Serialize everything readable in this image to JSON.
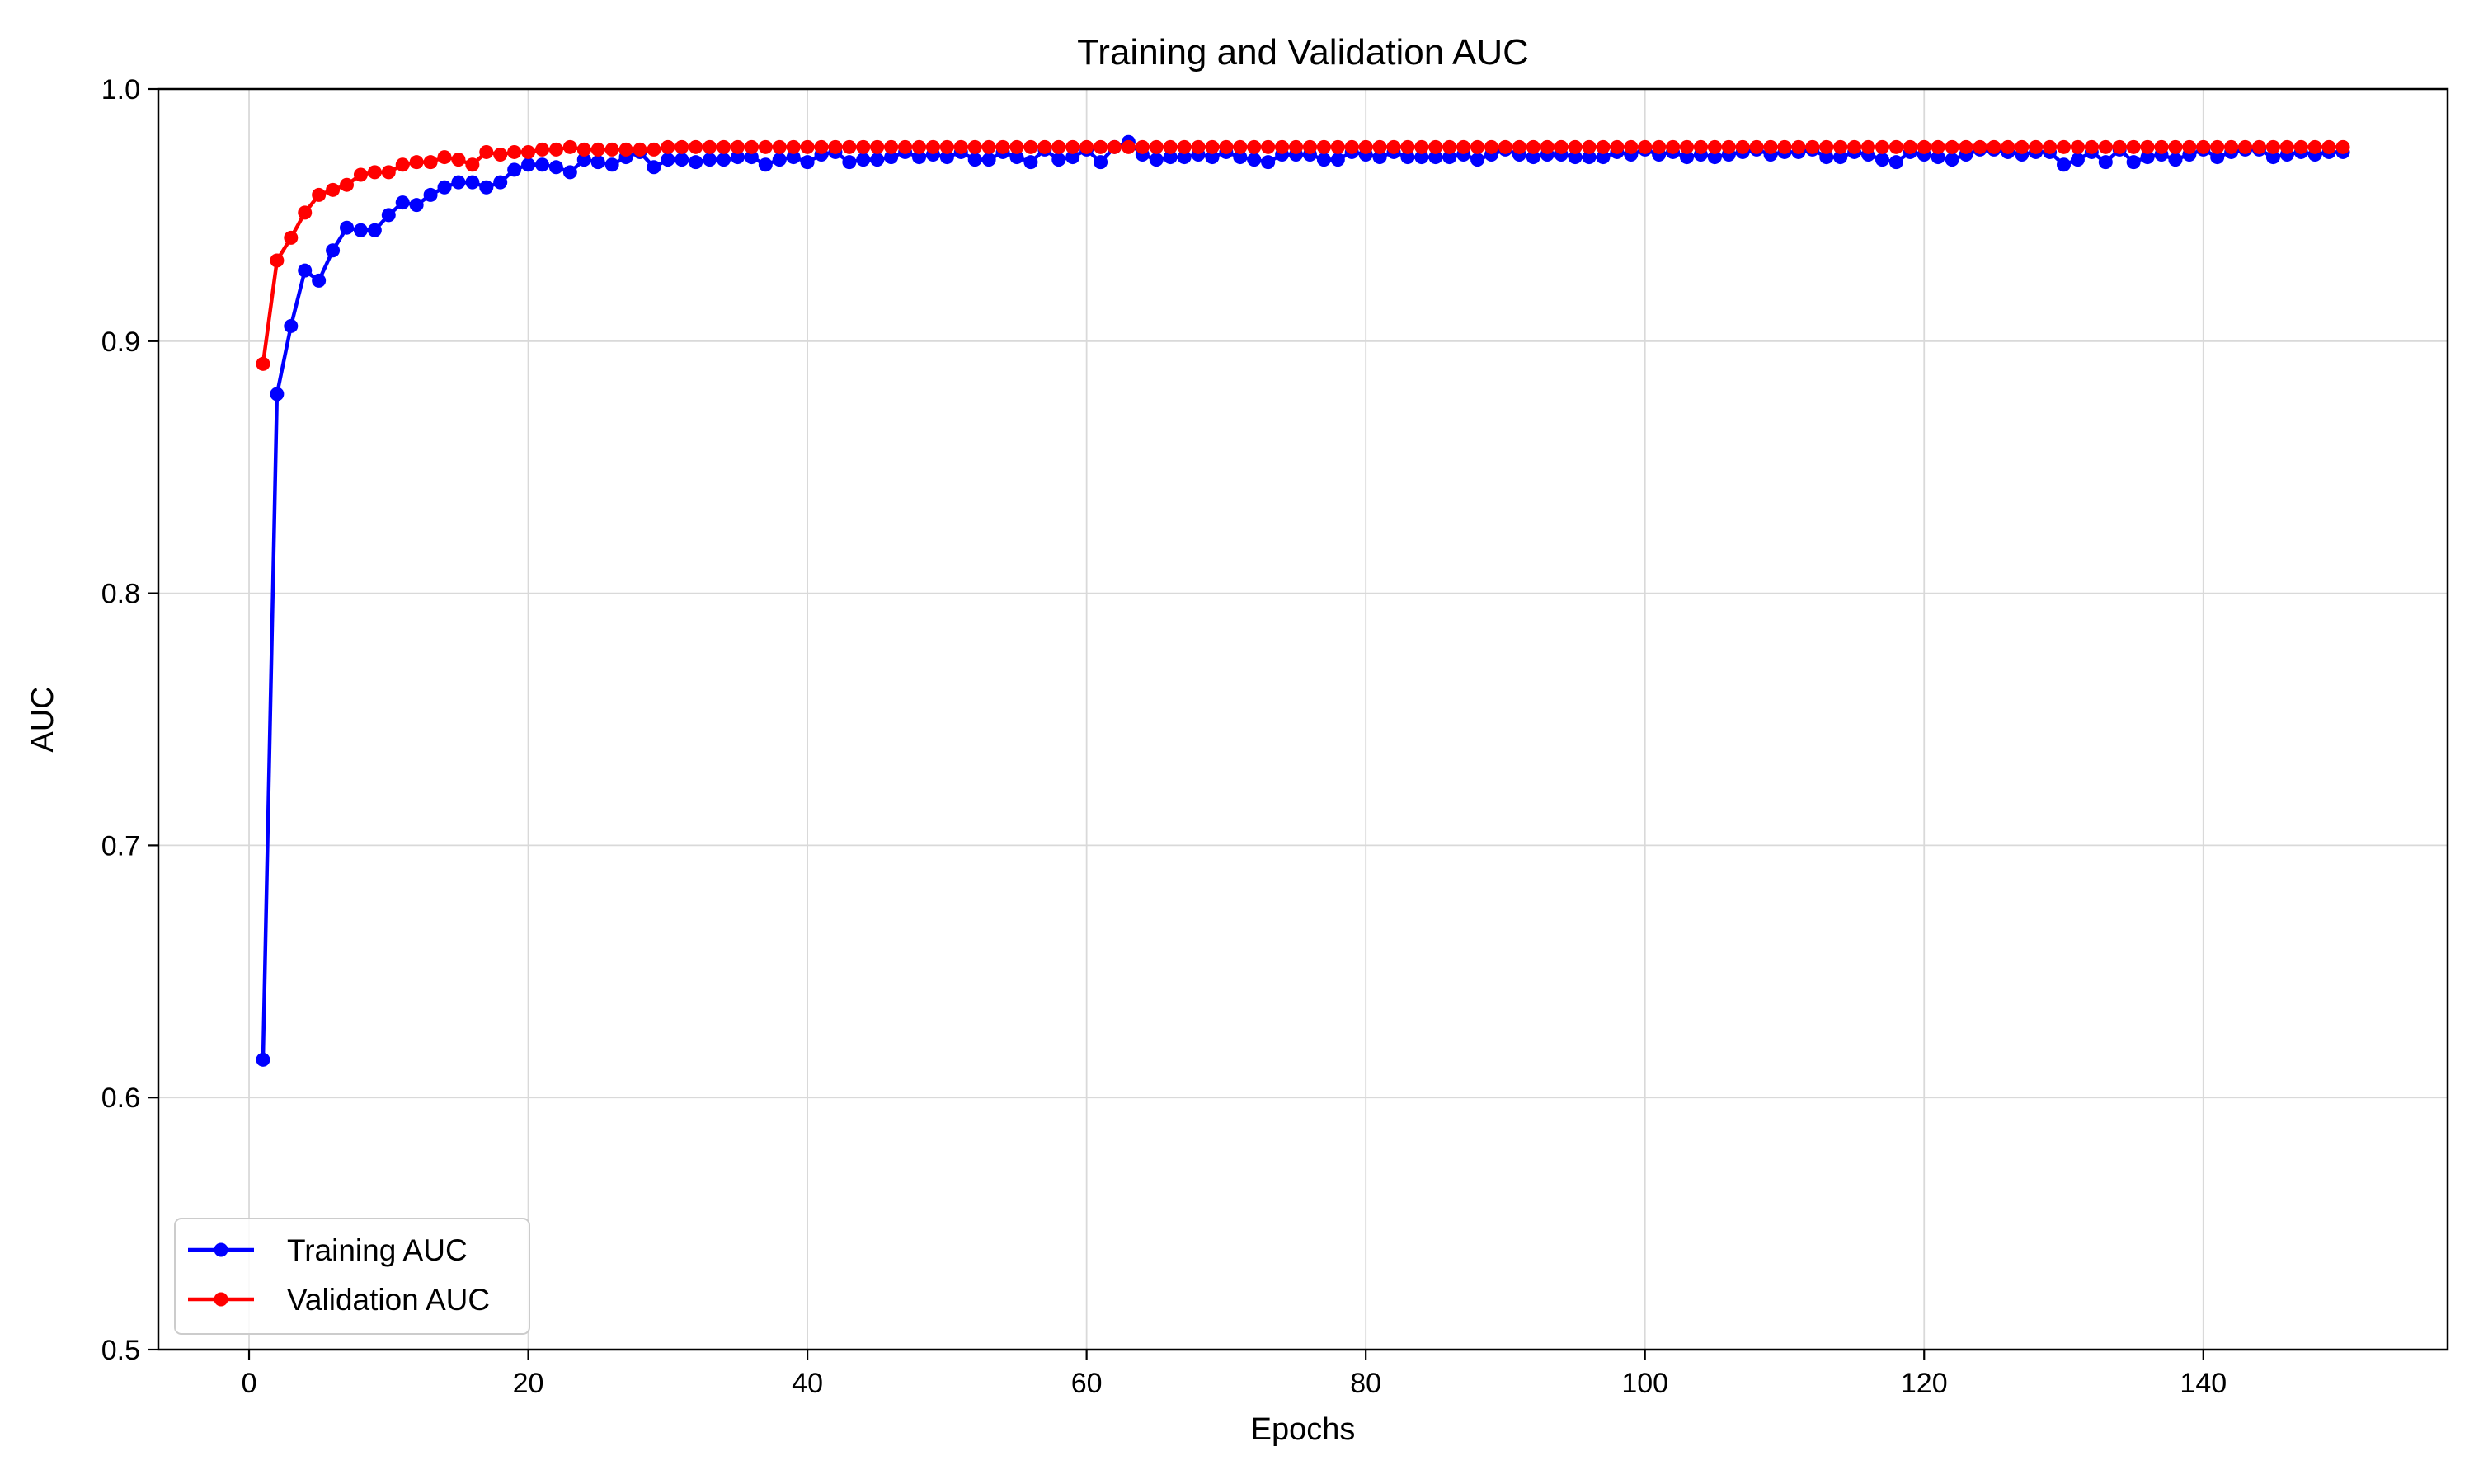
{
  "chart_data": {
    "type": "line",
    "title": "Training and Validation AUC",
    "xlabel": "Epochs",
    "ylabel": "AUC",
    "xlim": [
      -6.5,
      157.5
    ],
    "ylim": [
      0.5,
      1.0
    ],
    "xticks": [
      0,
      20,
      40,
      60,
      80,
      100,
      120,
      140
    ],
    "yticks": [
      0.5,
      0.6,
      0.7,
      0.8,
      0.9,
      1.0
    ],
    "ytick_labels": [
      "0.5",
      "0.6",
      "0.7",
      "0.8",
      "0.9",
      "1.0"
    ],
    "grid": true,
    "legend_position": "lower-left",
    "x": [
      1,
      2,
      3,
      4,
      5,
      6,
      7,
      8,
      9,
      10,
      11,
      12,
      13,
      14,
      15,
      16,
      17,
      18,
      19,
      20,
      21,
      22,
      23,
      24,
      25,
      26,
      27,
      28,
      29,
      30,
      31,
      32,
      33,
      34,
      35,
      36,
      37,
      38,
      39,
      40,
      41,
      42,
      43,
      44,
      45,
      46,
      47,
      48,
      49,
      50,
      51,
      52,
      53,
      54,
      55,
      56,
      57,
      58,
      59,
      60,
      61,
      62,
      63,
      64,
      65,
      66,
      67,
      68,
      69,
      70,
      71,
      72,
      73,
      74,
      75,
      76,
      77,
      78,
      79,
      80,
      81,
      82,
      83,
      84,
      85,
      86,
      87,
      88,
      89,
      90,
      91,
      92,
      93,
      94,
      95,
      96,
      97,
      98,
      99,
      100,
      101,
      102,
      103,
      104,
      105,
      106,
      107,
      108,
      109,
      110,
      111,
      112,
      113,
      114,
      115,
      116,
      117,
      118,
      119,
      120,
      121,
      122,
      123,
      124,
      125,
      126,
      127,
      128,
      129,
      130,
      131,
      132,
      133,
      134,
      135,
      136,
      137,
      138,
      139,
      140,
      141,
      142,
      143,
      144,
      145,
      146,
      147,
      148,
      149,
      150
    ],
    "series": [
      {
        "name": "Training AUC",
        "color": "#0000ff",
        "values": [
          0.615,
          0.879,
          0.906,
          0.928,
          0.924,
          0.936,
          0.945,
          0.944,
          0.944,
          0.95,
          0.955,
          0.954,
          0.958,
          0.961,
          0.963,
          0.963,
          0.961,
          0.963,
          0.968,
          0.97,
          0.97,
          0.969,
          0.967,
          0.972,
          0.971,
          0.97,
          0.973,
          0.975,
          0.969,
          0.972,
          0.972,
          0.971,
          0.972,
          0.972,
          0.973,
          0.973,
          0.97,
          0.972,
          0.973,
          0.971,
          0.974,
          0.975,
          0.971,
          0.972,
          0.972,
          0.973,
          0.975,
          0.973,
          0.974,
          0.973,
          0.975,
          0.972,
          0.972,
          0.975,
          0.973,
          0.971,
          0.976,
          0.972,
          0.973,
          0.976,
          0.971,
          0.977,
          0.979,
          0.974,
          0.972,
          0.973,
          0.973,
          0.974,
          0.973,
          0.975,
          0.973,
          0.972,
          0.971,
          0.974,
          0.974,
          0.974,
          0.972,
          0.972,
          0.975,
          0.974,
          0.973,
          0.975,
          0.973,
          0.973,
          0.973,
          0.973,
          0.974,
          0.972,
          0.974,
          0.976,
          0.974,
          0.973,
          0.974,
          0.974,
          0.973,
          0.973,
          0.973,
          0.975,
          0.974,
          0.976,
          0.974,
          0.975,
          0.973,
          0.974,
          0.973,
          0.974,
          0.975,
          0.976,
          0.974,
          0.975,
          0.975,
          0.976,
          0.973,
          0.973,
          0.975,
          0.974,
          0.972,
          0.971,
          0.975,
          0.974,
          0.973,
          0.972,
          0.974,
          0.976,
          0.976,
          0.975,
          0.974,
          0.975,
          0.975,
          0.97,
          0.972,
          0.975,
          0.971,
          0.976,
          0.971,
          0.973,
          0.974,
          0.972,
          0.974,
          0.976,
          0.973,
          0.975,
          0.976,
          0.976,
          0.973,
          0.974,
          0.975,
          0.974,
          0.975,
          0.975
        ]
      },
      {
        "name": "Validation AUC",
        "color": "#ff0000",
        "values": [
          0.891,
          0.932,
          0.941,
          0.951,
          0.958,
          0.96,
          0.962,
          0.966,
          0.967,
          0.967,
          0.97,
          0.971,
          0.971,
          0.973,
          0.972,
          0.97,
          0.975,
          0.974,
          0.975,
          0.975,
          0.976,
          0.976,
          0.977,
          0.976,
          0.976,
          0.976,
          0.976,
          0.976,
          0.976,
          0.977,
          0.977,
          0.977,
          0.977,
          0.977,
          0.977,
          0.977,
          0.977,
          0.977,
          0.977,
          0.977,
          0.977,
          0.977,
          0.977,
          0.977,
          0.977,
          0.977,
          0.977,
          0.977,
          0.977,
          0.977,
          0.977,
          0.977,
          0.977,
          0.977,
          0.977,
          0.977,
          0.977,
          0.977,
          0.977,
          0.977,
          0.977,
          0.977,
          0.977,
          0.977,
          0.977,
          0.977,
          0.977,
          0.977,
          0.977,
          0.977,
          0.977,
          0.977,
          0.977,
          0.977,
          0.977,
          0.977,
          0.977,
          0.977,
          0.977,
          0.977,
          0.977,
          0.977,
          0.977,
          0.977,
          0.977,
          0.977,
          0.977,
          0.977,
          0.977,
          0.977,
          0.977,
          0.977,
          0.977,
          0.977,
          0.977,
          0.977,
          0.977,
          0.977,
          0.977,
          0.977,
          0.977,
          0.977,
          0.977,
          0.977,
          0.977,
          0.977,
          0.977,
          0.977,
          0.977,
          0.977,
          0.977,
          0.977,
          0.977,
          0.977,
          0.977,
          0.977,
          0.977,
          0.977,
          0.977,
          0.977,
          0.977,
          0.977,
          0.977,
          0.977,
          0.977,
          0.977,
          0.977,
          0.977,
          0.977,
          0.977,
          0.977,
          0.977,
          0.977,
          0.977,
          0.977,
          0.977,
          0.977,
          0.977,
          0.977,
          0.977,
          0.977,
          0.977,
          0.977,
          0.977,
          0.977,
          0.977,
          0.977,
          0.977,
          0.977,
          0.977
        ]
      }
    ]
  }
}
